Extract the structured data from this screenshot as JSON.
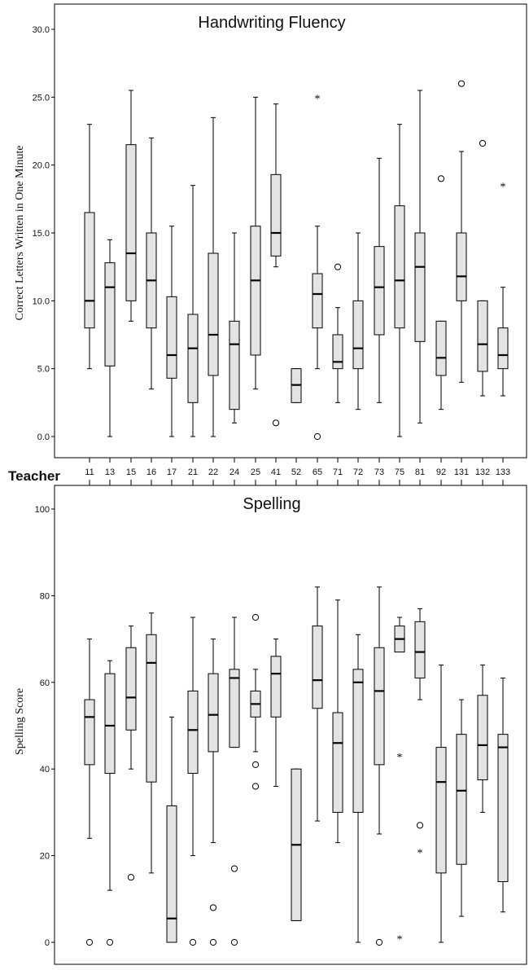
{
  "x_axis_title": "Teacher",
  "chart_data": [
    {
      "type": "box",
      "title": "Handwriting Fluency",
      "ylabel": "Correct Letters Written in One Minute",
      "xlabel": "",
      "ylim": [
        0,
        30
      ],
      "yticks": [
        "0.0",
        "5.0",
        "10.0",
        "15.0",
        "20.0",
        "25.0",
        "30.0"
      ],
      "categories": [
        "11",
        "13",
        "15",
        "16",
        "17",
        "21",
        "22",
        "24",
        "25",
        "41",
        "52",
        "65",
        "71",
        "72",
        "73",
        "75",
        "81",
        "92",
        "131",
        "132",
        "133"
      ],
      "boxes": [
        {
          "min": 5,
          "q1": 8,
          "median": 10,
          "q3": 16.5,
          "max": 23,
          "outliers": [],
          "extremes": []
        },
        {
          "min": 0,
          "q1": 5.2,
          "median": 11,
          "q3": 12.8,
          "max": 14.5,
          "outliers": [],
          "extremes": []
        },
        {
          "min": 8.5,
          "q1": 10,
          "median": 13.5,
          "q3": 21.5,
          "max": 25.5,
          "outliers": [],
          "extremes": []
        },
        {
          "min": 3.5,
          "q1": 8,
          "median": 11.5,
          "q3": 15,
          "max": 22,
          "outliers": [],
          "extremes": []
        },
        {
          "min": 0,
          "q1": 4.3,
          "median": 6,
          "q3": 10.3,
          "max": 15.5,
          "outliers": [],
          "extremes": []
        },
        {
          "min": 0,
          "q1": 2.5,
          "median": 6.5,
          "q3": 9,
          "max": 18.5,
          "outliers": [],
          "extremes": []
        },
        {
          "min": 0,
          "q1": 4.5,
          "median": 7.5,
          "q3": 13.5,
          "max": 23.5,
          "outliers": [],
          "extremes": []
        },
        {
          "min": 1,
          "q1": 2,
          "median": 6.8,
          "q3": 8.5,
          "max": 15,
          "outliers": [],
          "extremes": []
        },
        {
          "min": 3.5,
          "q1": 6,
          "median": 11.5,
          "q3": 15.5,
          "max": 25,
          "outliers": [],
          "extremes": []
        },
        {
          "min": 12.5,
          "q1": 13.3,
          "median": 15,
          "q3": 19.3,
          "max": 24.5,
          "outliers": [
            1
          ],
          "extremes": []
        },
        {
          "min": 2.5,
          "q1": 2.5,
          "median": 3.8,
          "q3": 5,
          "max": 5,
          "outliers": [],
          "extremes": []
        },
        {
          "min": 5,
          "q1": 8,
          "median": 10.5,
          "q3": 12,
          "max": 15.5,
          "outliers": [
            0
          ],
          "extremes": [
            25
          ]
        },
        {
          "min": 2.5,
          "q1": 5,
          "median": 5.5,
          "q3": 7.5,
          "max": 9.5,
          "outliers": [
            12.5
          ],
          "extremes": []
        },
        {
          "min": 2,
          "q1": 5,
          "median": 6.5,
          "q3": 10,
          "max": 15,
          "outliers": [],
          "extremes": []
        },
        {
          "min": 2.5,
          "q1": 7.5,
          "median": 11,
          "q3": 14,
          "max": 20.5,
          "outliers": [],
          "extremes": []
        },
        {
          "min": 0,
          "q1": 8,
          "median": 11.5,
          "q3": 17,
          "max": 23,
          "outliers": [],
          "extremes": []
        },
        {
          "min": 1,
          "q1": 7,
          "median": 12.5,
          "q3": 15,
          "max": 25.5,
          "outliers": [],
          "extremes": []
        },
        {
          "min": 2,
          "q1": 4.5,
          "median": 5.8,
          "q3": 8.5,
          "max": 8.5,
          "outliers": [
            19
          ],
          "extremes": []
        },
        {
          "min": 4,
          "q1": 10,
          "median": 11.8,
          "q3": 15,
          "max": 21,
          "outliers": [
            26
          ],
          "extremes": []
        },
        {
          "min": 3,
          "q1": 4.8,
          "median": 6.8,
          "q3": 10,
          "max": 10,
          "outliers": [
            21.6
          ],
          "extremes": []
        },
        {
          "min": 3,
          "q1": 5,
          "median": 6,
          "q3": 8,
          "max": 11,
          "outliers": [],
          "extremes": [
            18.5
          ]
        }
      ]
    },
    {
      "type": "box",
      "title": "Spelling",
      "ylabel": "Spelling Score",
      "xlabel": "",
      "ylim": [
        0,
        100
      ],
      "yticks": [
        "0",
        "20",
        "40",
        "60",
        "80",
        "100"
      ],
      "categories": [],
      "boxes": [
        {
          "min": 24,
          "q1": 41,
          "median": 52,
          "q3": 56,
          "max": 70,
          "outliers": [
            0
          ],
          "extremes": []
        },
        {
          "min": 12,
          "q1": 39,
          "median": 50,
          "q3": 62,
          "max": 65,
          "outliers": [
            0
          ],
          "extremes": []
        },
        {
          "min": 40,
          "q1": 49,
          "median": 56.5,
          "q3": 68,
          "max": 73,
          "outliers": [
            15
          ],
          "extremes": []
        },
        {
          "min": 16,
          "q1": 37,
          "median": 64.5,
          "q3": 71,
          "max": 76,
          "outliers": [],
          "extremes": []
        },
        {
          "min": 0,
          "q1": 0,
          "median": 5.5,
          "q3": 31.5,
          "max": 52,
          "outliers": [],
          "extremes": []
        },
        {
          "min": 20,
          "q1": 39,
          "median": 49,
          "q3": 58,
          "max": 75,
          "outliers": [
            0
          ],
          "extremes": []
        },
        {
          "min": 23,
          "q1": 44,
          "median": 52.5,
          "q3": 62,
          "max": 70,
          "outliers": [
            8,
            0
          ],
          "extremes": []
        },
        {
          "min": 45,
          "q1": 45,
          "median": 61,
          "q3": 63,
          "max": 75,
          "outliers": [
            17,
            0
          ],
          "extremes": []
        },
        {
          "min": 44,
          "q1": 52,
          "median": 55,
          "q3": 58,
          "max": 63,
          "outliers": [
            75,
            41,
            36
          ],
          "extremes": []
        },
        {
          "min": 36,
          "q1": 52,
          "median": 62,
          "q3": 66,
          "max": 70,
          "outliers": [],
          "extremes": []
        },
        {
          "min": 5,
          "q1": 5,
          "median": 22.5,
          "q3": 40,
          "max": 40,
          "outliers": [],
          "extremes": []
        },
        {
          "min": 28,
          "q1": 54,
          "median": 60.5,
          "q3": 73,
          "max": 82,
          "outliers": [],
          "extremes": []
        },
        {
          "min": 23,
          "q1": 30,
          "median": 46,
          "q3": 53,
          "max": 79,
          "outliers": [],
          "extremes": []
        },
        {
          "min": 0,
          "q1": 30,
          "median": 60,
          "q3": 63,
          "max": 71,
          "outliers": [],
          "extremes": []
        },
        {
          "min": 25,
          "q1": 41,
          "median": 58,
          "q3": 68,
          "max": 82,
          "outliers": [
            0
          ],
          "extremes": []
        },
        {
          "min": 67,
          "q1": 67,
          "median": 70,
          "q3": 73,
          "max": 75,
          "outliers": [],
          "extremes": [
            43,
            1
          ]
        },
        {
          "min": 56,
          "q1": 61,
          "median": 67,
          "q3": 74,
          "max": 77,
          "outliers": [
            27
          ],
          "extremes": [
            21
          ]
        },
        {
          "min": 0,
          "q1": 16,
          "median": 37,
          "q3": 45,
          "max": 64,
          "outliers": [],
          "extremes": []
        },
        {
          "min": 6,
          "q1": 18,
          "median": 35,
          "q3": 48,
          "max": 56,
          "outliers": [],
          "extremes": []
        },
        {
          "min": 30,
          "q1": 37.5,
          "median": 45.5,
          "q3": 57,
          "max": 64,
          "outliers": [],
          "extremes": []
        },
        {
          "min": 7,
          "q1": 14,
          "median": 45,
          "q3": 48,
          "max": 61,
          "outliers": [],
          "extremes": []
        }
      ]
    }
  ],
  "colors": {
    "box_fill": "#e3e3e3",
    "stroke": "#000000",
    "background": "#ffffff"
  }
}
